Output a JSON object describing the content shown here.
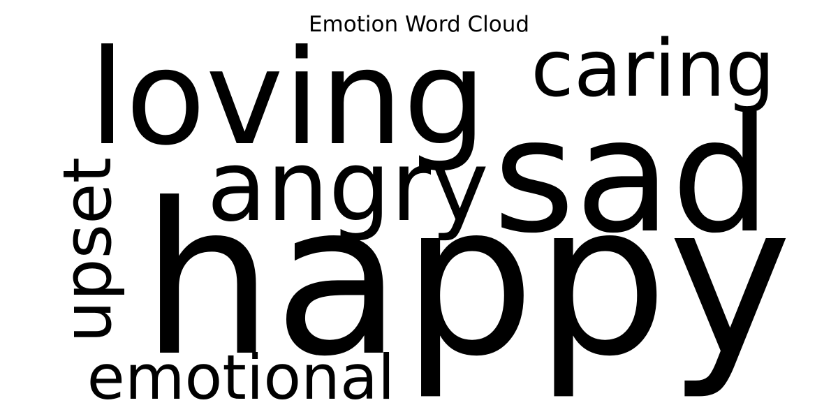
{
  "chart_data": {
    "type": "wordcloud",
    "title": "Emotion Word Cloud",
    "text_color": "#000000",
    "background": "#ffffff",
    "words": [
      {
        "text": "happy",
        "weight": 1.0,
        "orientation": "horizontal"
      },
      {
        "text": "loving",
        "weight": 0.62,
        "orientation": "horizontal"
      },
      {
        "text": "sad",
        "weight": 0.74,
        "orientation": "horizontal"
      },
      {
        "text": "angry",
        "weight": 0.45,
        "orientation": "horizontal"
      },
      {
        "text": "caring",
        "weight": 0.36,
        "orientation": "horizontal"
      },
      {
        "text": "upset",
        "weight": 0.3,
        "orientation": "vertical"
      },
      {
        "text": "emotional",
        "weight": 0.28,
        "orientation": "horizontal"
      }
    ]
  }
}
